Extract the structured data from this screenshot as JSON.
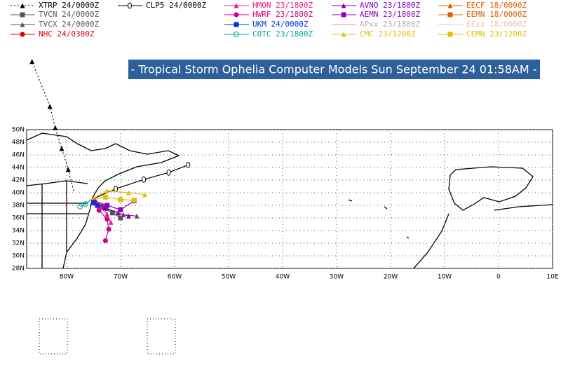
{
  "chart_data": {
    "type": "track_map",
    "title": "- Tropical Storm Ophelia Computer Models Sun September 24 01:58AM -",
    "xlim": [
      -87.4,
      10
    ],
    "ylim": [
      28,
      50
    ],
    "xticks": [
      {
        "value": -80,
        "label": "80W"
      },
      {
        "value": -70,
        "label": "70W"
      },
      {
        "value": -60,
        "label": "60W"
      },
      {
        "value": -50,
        "label": "50W"
      },
      {
        "value": -40,
        "label": "40W"
      },
      {
        "value": -30,
        "label": "30W"
      },
      {
        "value": -20,
        "label": "20W"
      },
      {
        "value": -10,
        "label": "10W"
      },
      0,
      {
        "value": 10,
        "label": "10E"
      }
    ],
    "yticks": [
      {
        "value": 28,
        "label": "28N"
      },
      {
        "value": 30,
        "label": "30N"
      },
      {
        "value": 32,
        "label": "32N"
      },
      {
        "value": 34,
        "label": "34N"
      },
      {
        "value": 36,
        "label": "36N"
      },
      {
        "value": 38,
        "label": "38N"
      },
      {
        "value": 40,
        "label": "40N"
      },
      {
        "value": 42,
        "label": "42N"
      },
      {
        "value": 44,
        "label": "44N"
      },
      {
        "value": 46,
        "label": "46N"
      },
      {
        "value": 48,
        "label": "48N"
      },
      {
        "value": 50,
        "label": "50N"
      }
    ],
    "grid": true,
    "series": [
      {
        "name": "XTRP 24/0000Z",
        "color": "#000000",
        "marker": "triangle",
        "dash": "dotted",
        "lon": [
          -78.7,
          -79.7,
          -80.9,
          -82.1,
          -83.1,
          -86.4
        ],
        "lat": [
          40.3,
          43.7,
          47,
          50.3,
          53.7,
          60.8
        ]
      },
      {
        "name": "TVCN 24/0000Z",
        "color": "#555555",
        "marker": "square",
        "lon": [
          -75.6,
          -73.5,
          -71.5,
          -70
        ],
        "lat": [
          38.9,
          37.8,
          36.8,
          36
        ]
      },
      {
        "name": "TVCX 24/0000Z",
        "color": "#555555",
        "marker": "triangle",
        "lon": [
          -75.6,
          -72.5,
          -69.5,
          -67
        ],
        "lat": [
          38.9,
          37.5,
          36.5,
          36.3
        ]
      },
      {
        "name": "NHC 24/0300Z",
        "color": "#e00000",
        "marker": "circle",
        "lon": [
          -75.6,
          -74.8
        ],
        "lat": [
          38.9,
          38.6
        ]
      },
      {
        "name": "CLP5 24/0000Z",
        "color": "#000000",
        "marker": "zero",
        "lon": [
          -75.5,
          -70.9,
          -65.7,
          -61.1,
          -57.5
        ],
        "lat": [
          38.9,
          40.6,
          42.1,
          43.2,
          44.4
        ]
      },
      {
        "name": "HWRF 23/1800Z",
        "color": "#d0008a",
        "marker": "circle",
        "lon": [
          -75.5,
          -74,
          -72.5,
          -72.2,
          -72.8
        ],
        "lat": [
          38.9,
          37.2,
          35.8,
          34.2,
          32.4
        ]
      },
      {
        "name": "HMON 23/1800Z",
        "color": "#e0208a",
        "marker": "triangle",
        "lon": [
          -75.5,
          -73.8,
          -72.5,
          -71.8
        ],
        "lat": [
          38.9,
          37.8,
          36.6,
          35.3
        ]
      },
      {
        "name": "UKM 24/0000Z",
        "color": "#0030e0",
        "marker": "square",
        "lon": [
          -75.5,
          -75,
          -74.3
        ],
        "lat": [
          38.9,
          38.4,
          38
        ]
      },
      {
        "name": "COTC 23/1800Z",
        "color": "#00a0a0",
        "marker": "opencircle",
        "lon": [
          -75.5,
          -76.5,
          -77.5
        ],
        "lat": [
          38.9,
          38.2,
          37.8
        ]
      },
      {
        "name": "AVNO 23/1800Z",
        "color": "#8000c0",
        "marker": "triangle",
        "lon": [
          -75.5,
          -73,
          -70.5,
          -68.5
        ],
        "lat": [
          38.9,
          37.6,
          36.8,
          36.3
        ]
      },
      {
        "name": "AEMN 23/1800Z",
        "color": "#9000c0",
        "marker": "square",
        "lon": [
          -75.5,
          -72.5,
          -70,
          -67.5
        ],
        "lat": [
          38.9,
          38,
          37.3,
          38.7
        ]
      },
      {
        "name": "APxx 23/1800Z",
        "color": "#b0b0b0"
      },
      {
        "name": "CMC 23/1200Z",
        "color": "#e0c000",
        "marker": "triangle",
        "lon": [
          -75.5,
          -72.5,
          -68.5,
          -65.5
        ],
        "lat": [
          38.9,
          40.3,
          40,
          39.7
        ]
      },
      {
        "name": "EECF 18/0000Z",
        "color": "#e06000",
        "marker": "triangle"
      },
      {
        "name": "EEMN 18/0000Z",
        "color": "#e06000",
        "marker": "square"
      },
      {
        "name": "EExx 18/0000Z",
        "color": "#f0c0c0"
      },
      {
        "name": "CEMN 23/1200Z",
        "color": "#e0c000",
        "marker": "square",
        "lon": [
          -75.5,
          -72.8,
          -70,
          -67.5
        ],
        "lat": [
          38.9,
          39.3,
          38.9,
          38.8
        ]
      }
    ]
  }
}
